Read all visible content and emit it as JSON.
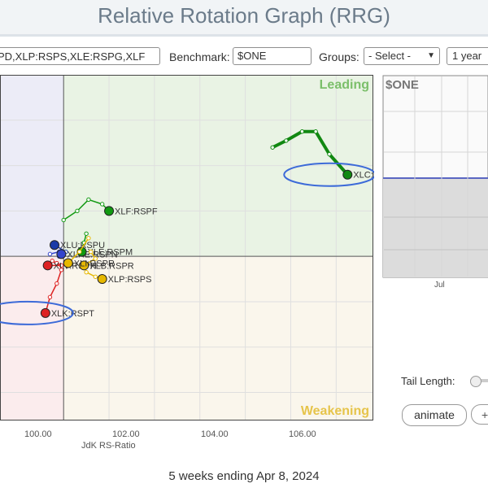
{
  "app": {
    "title": "Relative Rotation Graph (RRG)"
  },
  "controls": {
    "symbols_value": "PD,XLP:RSPS,XLE:RSPG,XLF",
    "benchmark_label": "Benchmark:",
    "benchmark_value": "$ONE",
    "groups_label": "Groups:",
    "groups_value": "- Select -",
    "period_value": "1 year"
  },
  "chart_data": {
    "type": "scatter",
    "xlabel": "JdK RS-Ratio",
    "ylabel": "",
    "xlim": [
      98.6,
      106.8
    ],
    "ylim": [
      96.4,
      104.0
    ],
    "center": [
      100,
      100
    ],
    "x_ticks": [
      "100.00",
      "102.00",
      "104.00",
      "106.00"
    ],
    "quadrants": {
      "top_right": "Leading",
      "bottom_right": "Weakening"
    },
    "colors": {
      "leading_bg": "#e9f3e4",
      "weakening_bg": "#faf6ec",
      "lagging_bg": "#fbeced",
      "improving_bg": "#ececf7",
      "leading_text": "#7bbf6a",
      "weakening_text": "#e6c44a"
    },
    "series": [
      {
        "name": "XLC:RSPC",
        "color": "#118811",
        "tail": [
          [
            104.6,
            102.4
          ],
          [
            104.9,
            102.55
          ],
          [
            105.25,
            102.75
          ],
          [
            105.55,
            102.75
          ],
          [
            105.85,
            102.25
          ],
          [
            106.25,
            101.8
          ]
        ]
      },
      {
        "name": "XLF:RSPF",
        "color": "#119911",
        "tail": [
          [
            100.0,
            100.8
          ],
          [
            100.3,
            101.0
          ],
          [
            100.55,
            101.25
          ],
          [
            100.85,
            101.15
          ],
          [
            101.0,
            101.0
          ]
        ]
      },
      {
        "name": "XLU:RSPU",
        "color": "#1a3aa8",
        "tail": [
          [
            99.9,
            100.0
          ],
          [
            100.05,
            100.1
          ],
          [
            99.8,
            100.25
          ]
        ]
      },
      {
        "name": "XLRE:RSPN",
        "color": "#3344cc",
        "tail": [
          [
            99.7,
            100.05
          ],
          [
            99.9,
            100.1
          ],
          [
            99.95,
            100.05
          ]
        ]
      },
      {
        "name": "XLE:RSPM",
        "color": "#119911",
        "tail": [
          [
            100.5,
            100.5
          ],
          [
            100.45,
            100.3
          ],
          [
            100.4,
            100.1
          ]
        ]
      },
      {
        "name": "XLV:RSPH",
        "color": "#dd2222",
        "tail": [
          [
            99.75,
            99.9
          ],
          [
            99.85,
            99.85
          ],
          [
            99.95,
            99.8
          ],
          [
            99.65,
            99.8
          ]
        ]
      },
      {
        "name": "XLB:RSPR",
        "color": "#e6b800",
        "tail": [
          [
            100.6,
            100.1
          ],
          [
            100.7,
            99.95
          ],
          [
            100.45,
            99.8
          ]
        ]
      },
      {
        "name": "XLI:RSPR",
        "color": "#e6b800",
        "tail": [
          [
            100.55,
            100.4
          ],
          [
            100.35,
            100.1
          ],
          [
            100.1,
            99.85
          ]
        ]
      },
      {
        "name": "XLP:RSPS",
        "color": "#e6b800",
        "tail": [
          [
            100.5,
            99.65
          ],
          [
            100.7,
            99.55
          ],
          [
            100.85,
            99.5
          ]
        ]
      },
      {
        "name": "XLK:RSPT",
        "color": "#dd2222",
        "tail": [
          [
            99.95,
            99.7
          ],
          [
            99.85,
            99.4
          ],
          [
            99.7,
            99.1
          ],
          [
            99.6,
            98.75
          ]
        ]
      }
    ],
    "highlighted": [
      "XLC:RSPC",
      "XLK:RSPT"
    ]
  },
  "side_panel": {
    "title": "$ONE",
    "x_label": "Jul"
  },
  "tail": {
    "label": "Tail Length:"
  },
  "buttons": {
    "animate": "animate",
    "plus": "+"
  },
  "footer": {
    "text": "5 weeks ending Apr 8, 2024"
  }
}
